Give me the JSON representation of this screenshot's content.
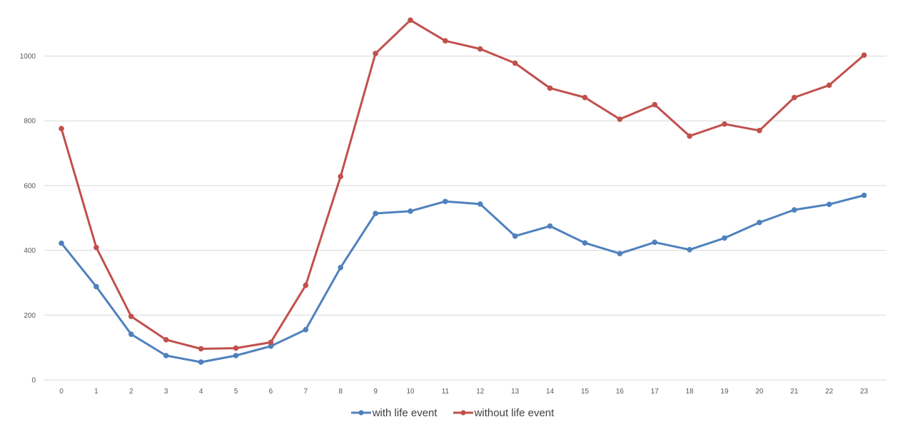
{
  "chart_data": {
    "type": "line",
    "title": "",
    "xlabel": "",
    "ylabel": "",
    "x": [
      0,
      1,
      2,
      3,
      4,
      5,
      6,
      7,
      8,
      9,
      10,
      11,
      12,
      13,
      14,
      15,
      16,
      17,
      18,
      19,
      20,
      21,
      22,
      23
    ],
    "x_tick_labels": [
      "0",
      "1",
      "2",
      "3",
      "4",
      "5",
      "6",
      "7",
      "8",
      "9",
      "10",
      "11",
      "12",
      "13",
      "14",
      "15",
      "16",
      "17",
      "18",
      "19",
      "20",
      "21",
      "22",
      "23"
    ],
    "ylim": [
      0,
      1100
    ],
    "y_ticks": [
      0,
      200,
      400,
      600,
      800,
      1000
    ],
    "y_tick_labels": [
      "0",
      "200",
      "400",
      "600",
      "800",
      "1000"
    ],
    "grid": "horizontal",
    "legend_position": "bottom-center",
    "series": [
      {
        "name": "with life event",
        "color": "#4f81bd",
        "values": [
          422,
          288,
          141,
          75,
          55,
          75,
          104,
          155,
          347,
          514,
          521,
          551,
          543,
          444,
          475,
          423,
          390,
          425,
          402,
          438,
          486,
          525,
          542,
          570
        ]
      },
      {
        "name": "without life event",
        "color": "#c0504d",
        "values": [
          776,
          409,
          196,
          124,
          96,
          98,
          116,
          292,
          628,
          1008,
          1111,
          1047,
          1022,
          978,
          901,
          872,
          805,
          850,
          753,
          790,
          770,
          872,
          910,
          1003
        ]
      }
    ]
  }
}
